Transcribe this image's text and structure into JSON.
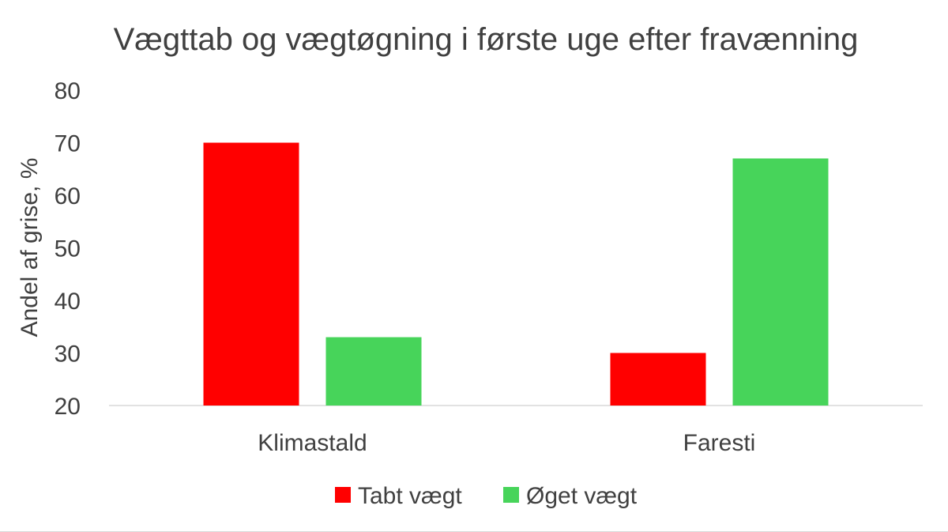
{
  "chart_data": {
    "type": "bar",
    "title": "Vægttab og vægtøgning i første uge efter fravænning",
    "xlabel": "",
    "ylabel": "Andel af grise, %",
    "categories": [
      "Klimastald",
      "Faresti"
    ],
    "series": [
      {
        "name": "Tabt vægt",
        "color": "#ff0000",
        "values": [
          70,
          30
        ]
      },
      {
        "name": "Øget vægt",
        "color": "#47d45a",
        "values": [
          33,
          67
        ]
      }
    ],
    "ylim": [
      20,
      80
    ],
    "yticks": [
      20,
      30,
      40,
      50,
      60,
      70,
      80
    ],
    "grid": false,
    "legend_position": "bottom"
  }
}
